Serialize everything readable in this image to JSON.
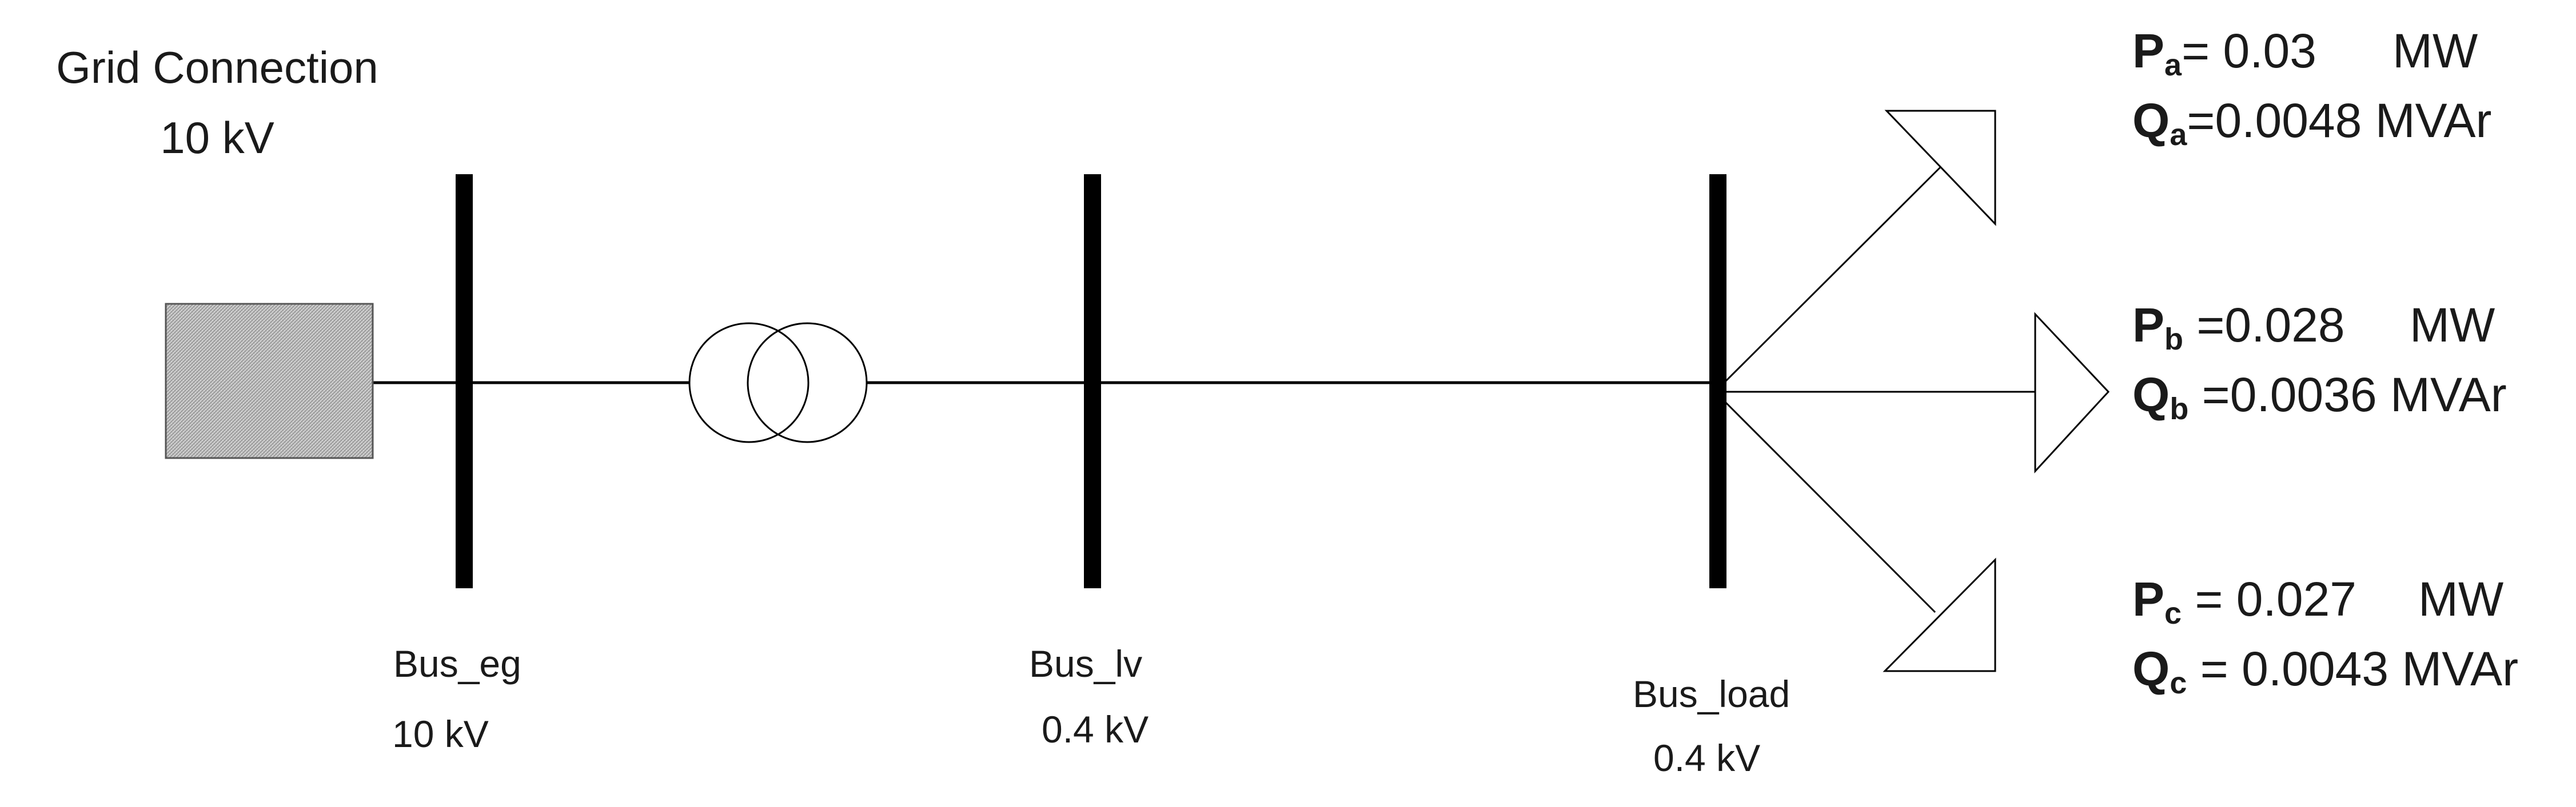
{
  "grid": {
    "title": "Grid Connection",
    "voltage": "10 kV"
  },
  "buses": [
    {
      "name": "Bus_eg",
      "voltage": "10 kV"
    },
    {
      "name": "Bus_lv",
      "voltage": "0.4 kV"
    },
    {
      "name": "Bus_load",
      "voltage": "0.4 kV"
    }
  ],
  "loads": [
    {
      "p_symbol": "P",
      "p_sub": "a",
      "p_text": "= 0.03",
      "p_unit": "MW",
      "q_symbol": "Q",
      "q_sub": "a",
      "q_text": "=0.0048 MVAr"
    },
    {
      "p_symbol": "P",
      "p_sub": "b",
      "p_text": " =0.028",
      "p_unit": "MW",
      "q_symbol": "Q",
      "q_sub": "b",
      "q_text": " =0.0036 MVAr"
    },
    {
      "p_symbol": "P",
      "p_sub": "c",
      "p_text": " = 0.027",
      "p_unit": "MW",
      "q_symbol": "Q",
      "q_sub": "c",
      "q_text": " = 0.0043 MVAr"
    }
  ]
}
